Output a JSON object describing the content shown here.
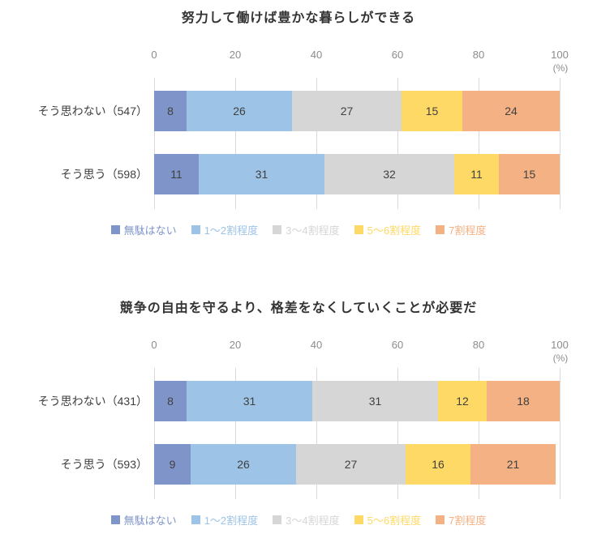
{
  "colors": {
    "series": [
      "#7F95C9",
      "#9DC3E6",
      "#D6D6D6",
      "#FFD966",
      "#F4B183"
    ],
    "gridline": "#d9d9d9",
    "axis_text": "#8c8c8c",
    "value_text": "#404040",
    "title_text": "#333333"
  },
  "chart_data": [
    {
      "type": "bar",
      "orientation": "horizontal",
      "stacked": true,
      "grid": true,
      "legend_position": "bottom",
      "title": "努力して働けば豊かな暮らしができる",
      "xlabel": "(%)",
      "xlim": [
        0,
        100
      ],
      "xticks": [
        0,
        20,
        40,
        60,
        80,
        100
      ],
      "categories": [
        "そう思わない（547）",
        "そう思う（598）"
      ],
      "series": [
        {
          "name": "無駄はない",
          "values": [
            8,
            11
          ]
        },
        {
          "name": "1〜2割程度",
          "values": [
            26,
            31
          ]
        },
        {
          "name": "3〜4割程度",
          "values": [
            27,
            32
          ]
        },
        {
          "name": "5〜6割程度",
          "values": [
            15,
            11
          ]
        },
        {
          "name": "7割程度",
          "values": [
            24,
            15
          ]
        }
      ]
    },
    {
      "type": "bar",
      "orientation": "horizontal",
      "stacked": true,
      "grid": true,
      "legend_position": "bottom",
      "title": "競争の自由を守るより、格差をなくしていくことが必要だ",
      "xlabel": "(%)",
      "xlim": [
        0,
        100
      ],
      "xticks": [
        0,
        20,
        40,
        60,
        80,
        100
      ],
      "categories": [
        "そう思わない（431）",
        "そう思う（593）"
      ],
      "series": [
        {
          "name": "無駄はない",
          "values": [
            8,
            9
          ]
        },
        {
          "name": "1〜2割程度",
          "values": [
            31,
            26
          ]
        },
        {
          "name": "3〜4割程度",
          "values": [
            31,
            27
          ]
        },
        {
          "name": "5〜6割程度",
          "values": [
            12,
            16
          ]
        },
        {
          "name": "7割程度",
          "values": [
            18,
            21
          ]
        }
      ]
    }
  ]
}
